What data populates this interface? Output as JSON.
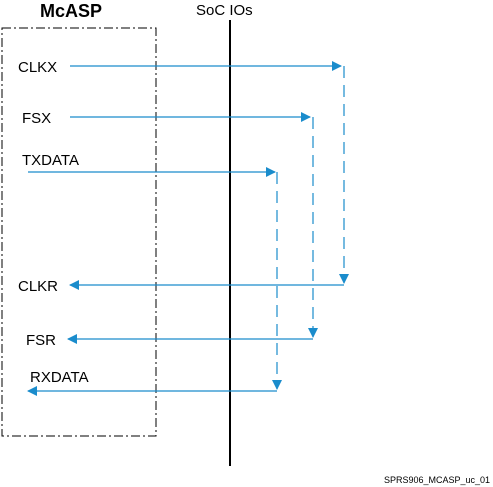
{
  "block": {
    "title": "McASP"
  },
  "io_header": "SoC IOs",
  "signals": {
    "clkx": "CLKX",
    "fsx": "FSX",
    "txdata": "TXDATA",
    "clkr": "CLKR",
    "fsr": "FSR",
    "rxdata": "RXDATA"
  },
  "figure_id": "SPRS906_MCASP_uc_01",
  "colors": {
    "arrow": "#1a8ccc",
    "outline": "#000000"
  }
}
